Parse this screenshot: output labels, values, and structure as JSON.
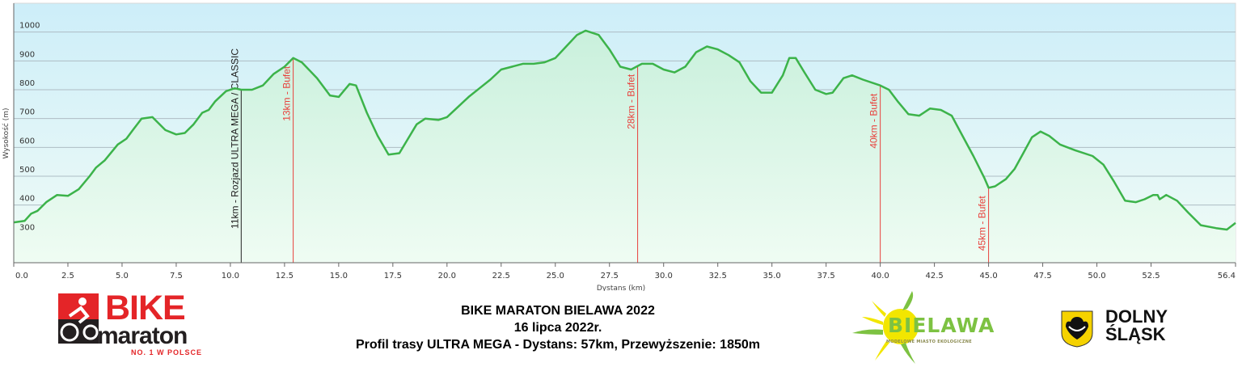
{
  "chart_data": {
    "type": "area",
    "xlabel": "Dystans  (km)",
    "ylabel": "Wysokość (m)",
    "xlim": [
      0,
      56.4
    ],
    "ylim": [
      200,
      1100
    ],
    "grid": true,
    "x_ticks": [
      "0.0",
      "2.5",
      "5.0",
      "7.5",
      "10.0",
      "12.5",
      "15.0",
      "17.5",
      "20.0",
      "22.5",
      "25.0",
      "27.5",
      "30.0",
      "32.5",
      "35.0",
      "37.5",
      "40.0",
      "42.5",
      "45.0",
      "47.5",
      "50.0",
      "52.5",
      "56.4"
    ],
    "y_ticks": [
      "300",
      "400",
      "500",
      "600",
      "700",
      "800",
      "900",
      "1000"
    ],
    "series": [
      {
        "name": "Profil trasy ULTRA MEGA",
        "color": "#3cb34a",
        "points": [
          [
            0,
            340
          ],
          [
            0.5,
            345
          ],
          [
            0.8,
            370
          ],
          [
            1.1,
            380
          ],
          [
            1.5,
            410
          ],
          [
            2,
            435
          ],
          [
            2.5,
            432
          ],
          [
            3,
            455
          ],
          [
            3.5,
            500
          ],
          [
            3.8,
            530
          ],
          [
            4.2,
            555
          ],
          [
            4.8,
            610
          ],
          [
            5.2,
            630
          ],
          [
            5.5,
            660
          ],
          [
            5.9,
            700
          ],
          [
            6.4,
            705
          ],
          [
            7,
            660
          ],
          [
            7.5,
            645
          ],
          [
            7.9,
            650
          ],
          [
            8.3,
            680
          ],
          [
            8.7,
            720
          ],
          [
            9,
            730
          ],
          [
            9.3,
            760
          ],
          [
            9.8,
            795
          ],
          [
            10.2,
            805
          ],
          [
            10.5,
            800
          ],
          [
            11,
            800
          ],
          [
            11.5,
            815
          ],
          [
            12,
            855
          ],
          [
            12.5,
            880
          ],
          [
            12.9,
            910
          ],
          [
            13.3,
            895
          ],
          [
            14,
            840
          ],
          [
            14.6,
            780
          ],
          [
            15,
            775
          ],
          [
            15.5,
            820
          ],
          [
            15.8,
            815
          ],
          [
            16.3,
            720
          ],
          [
            16.8,
            640
          ],
          [
            17.3,
            575
          ],
          [
            17.8,
            580
          ],
          [
            18.2,
            630
          ],
          [
            18.6,
            680
          ],
          [
            19,
            700
          ],
          [
            19.6,
            695
          ],
          [
            20,
            705
          ],
          [
            20.5,
            740
          ],
          [
            21,
            775
          ],
          [
            21.5,
            805
          ],
          [
            22,
            835
          ],
          [
            22.5,
            870
          ],
          [
            23,
            880
          ],
          [
            23.5,
            890
          ],
          [
            24,
            890
          ],
          [
            24.5,
            895
          ],
          [
            25,
            910
          ],
          [
            25.5,
            950
          ],
          [
            26,
            990
          ],
          [
            26.4,
            1005
          ],
          [
            27,
            990
          ],
          [
            27.5,
            940
          ],
          [
            28,
            880
          ],
          [
            28.5,
            870
          ],
          [
            29,
            890
          ],
          [
            29.5,
            890
          ],
          [
            30,
            870
          ],
          [
            30.5,
            860
          ],
          [
            31,
            880
          ],
          [
            31.5,
            930
          ],
          [
            32,
            950
          ],
          [
            32.5,
            940
          ],
          [
            33,
            920
          ],
          [
            33.5,
            895
          ],
          [
            34,
            830
          ],
          [
            34.5,
            790
          ],
          [
            35,
            790
          ],
          [
            35.5,
            850
          ],
          [
            35.8,
            910
          ],
          [
            36.1,
            910
          ],
          [
            36.5,
            860
          ],
          [
            37,
            800
          ],
          [
            37.5,
            785
          ],
          [
            37.8,
            790
          ],
          [
            38.3,
            840
          ],
          [
            38.7,
            850
          ],
          [
            39.2,
            835
          ],
          [
            40,
            815
          ],
          [
            40.4,
            800
          ],
          [
            40.8,
            760
          ],
          [
            41.3,
            715
          ],
          [
            41.8,
            710
          ],
          [
            42.3,
            735
          ],
          [
            42.8,
            730
          ],
          [
            43.3,
            710
          ],
          [
            43.8,
            640
          ],
          [
            44.3,
            570
          ],
          [
            44.8,
            495
          ],
          [
            45,
            460
          ],
          [
            45.3,
            465
          ],
          [
            45.8,
            490
          ],
          [
            46.2,
            525
          ],
          [
            46.6,
            580
          ],
          [
            47,
            635
          ],
          [
            47.4,
            655
          ],
          [
            47.8,
            640
          ],
          [
            48.3,
            610
          ],
          [
            49,
            590
          ],
          [
            49.8,
            570
          ],
          [
            50.3,
            540
          ],
          [
            50.8,
            480
          ],
          [
            51.3,
            415
          ],
          [
            51.8,
            410
          ],
          [
            52.2,
            420
          ],
          [
            52.6,
            435
          ],
          [
            52.8,
            435
          ],
          [
            52.9,
            420
          ],
          [
            53.2,
            435
          ],
          [
            53.7,
            415
          ],
          [
            54.2,
            375
          ],
          [
            54.8,
            330
          ],
          [
            55.5,
            320
          ],
          [
            56,
            315
          ],
          [
            56.4,
            338
          ]
        ]
      }
    ],
    "annotations": [
      {
        "km": 10.5,
        "label": "11km - Rozjazd ULTRA MEGA / CLASSIC",
        "color": "#222222"
      },
      {
        "km": 12.9,
        "label": "13km - Bufet",
        "color": "#e8413c"
      },
      {
        "km": 28.8,
        "label": "28km - Bufet",
        "color": "#e8413c"
      },
      {
        "km": 40.0,
        "label": "40km - Bufet",
        "color": "#e8413c"
      },
      {
        "km": 45.0,
        "label": "45km - Bufet",
        "color": "#e8413c"
      }
    ]
  },
  "title": {
    "line1": "BIKE MARATON BIELAWA 2022",
    "line2": "16 lipca 2022r.",
    "line3": "Profil trasy ULTRA MEGA - Dystans: 57km, Przewyższenie: 1850m"
  },
  "logos": {
    "bike_maraton": {
      "word1": "BIKE",
      "word2": "maraton",
      "tagline": "NO. 1 W POLSCE"
    },
    "bielawa": {
      "word": "BIELAWA",
      "tagline": "MODELOWE MIASTO EKOLOGICZNE"
    },
    "dolny_slask": {
      "line1": "DOLNY",
      "line2": "ŚLĄSK"
    }
  }
}
